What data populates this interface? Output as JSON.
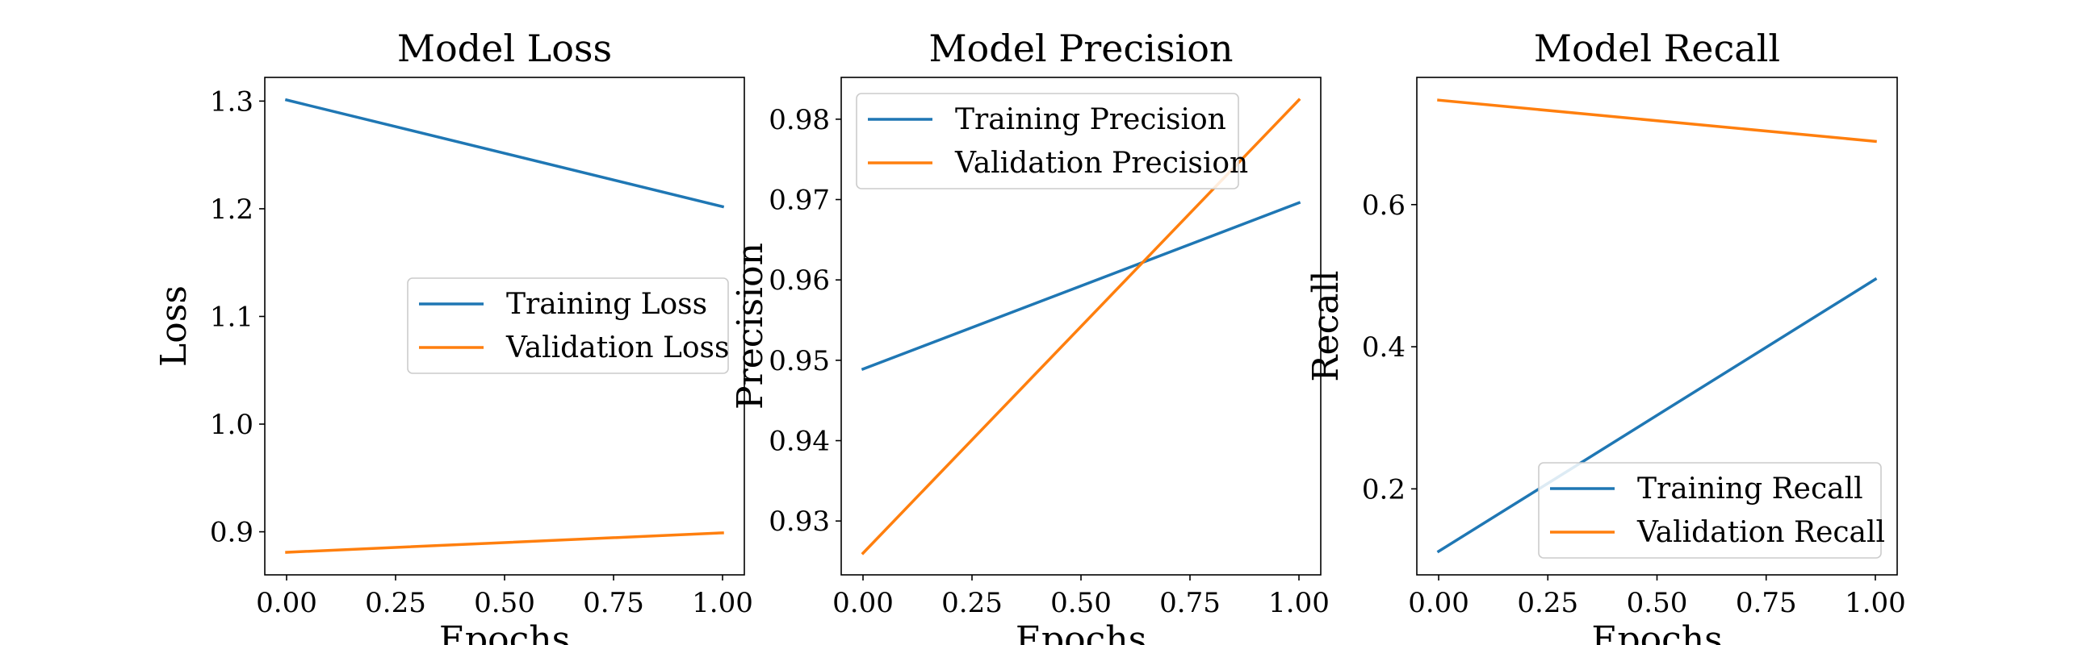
{
  "colors": {
    "training": "#1f77b4",
    "validation": "#ff7f0e",
    "axis": "#000000",
    "legend_border": "#cccccc"
  },
  "chart_data": [
    {
      "type": "line",
      "title": "Model Loss",
      "xlabel": "Epochs",
      "ylabel": "Loss",
      "xlim": [
        -0.05,
        1.05
      ],
      "ylim": [
        0.86,
        1.322
      ],
      "xticks": [
        0.0,
        0.25,
        0.5,
        0.75,
        1.0
      ],
      "xtick_labels": [
        "0.00",
        "0.25",
        "0.50",
        "0.75",
        "1.00"
      ],
      "yticks": [
        0.9,
        1.0,
        1.1,
        1.2,
        1.3
      ],
      "ytick_labels": [
        "0.9",
        "1.0",
        "1.1",
        "1.2",
        "1.3"
      ],
      "grid": false,
      "legend_position": "center-right",
      "series": [
        {
          "name": "Training Loss",
          "color_key": "training",
          "x": [
            0,
            1
          ],
          "y": [
            1.301,
            1.202
          ]
        },
        {
          "name": "Validation Loss",
          "color_key": "validation",
          "x": [
            0,
            1
          ],
          "y": [
            0.881,
            0.899
          ]
        }
      ]
    },
    {
      "type": "line",
      "title": "Model Precision",
      "xlabel": "Epochs",
      "ylabel": "Precision",
      "xlim": [
        -0.05,
        1.05
      ],
      "ylim": [
        0.9233,
        0.9852
      ],
      "xticks": [
        0.0,
        0.25,
        0.5,
        0.75,
        1.0
      ],
      "xtick_labels": [
        "0.00",
        "0.25",
        "0.50",
        "0.75",
        "1.00"
      ],
      "yticks": [
        0.93,
        0.94,
        0.95,
        0.96,
        0.97,
        0.98
      ],
      "ytick_labels": [
        "0.93",
        "0.94",
        "0.95",
        "0.96",
        "0.97",
        "0.98"
      ],
      "grid": false,
      "legend_position": "upper-left",
      "series": [
        {
          "name": "Training Precision",
          "color_key": "training",
          "x": [
            0,
            1
          ],
          "y": [
            0.9489,
            0.9696
          ]
        },
        {
          "name": "Validation Precision",
          "color_key": "validation",
          "x": [
            0,
            1
          ],
          "y": [
            0.926,
            0.9824
          ]
        }
      ]
    },
    {
      "type": "line",
      "title": "Model Recall",
      "xlabel": "Epochs",
      "ylabel": "Recall",
      "xlim": [
        -0.05,
        1.05
      ],
      "ylim": [
        0.079,
        0.779
      ],
      "xticks": [
        0.0,
        0.25,
        0.5,
        0.75,
        1.0
      ],
      "xtick_labels": [
        "0.00",
        "0.25",
        "0.50",
        "0.75",
        "1.00"
      ],
      "yticks": [
        0.2,
        0.4,
        0.6
      ],
      "ytick_labels": [
        "0.2",
        "0.4",
        "0.6"
      ],
      "grid": false,
      "legend_position": "lower-right",
      "series": [
        {
          "name": "Training Recall",
          "color_key": "training",
          "x": [
            0,
            1
          ],
          "y": [
            0.112,
            0.495
          ]
        },
        {
          "name": "Validation Recall",
          "color_key": "validation",
          "x": [
            0,
            1
          ],
          "y": [
            0.747,
            0.689
          ]
        }
      ]
    }
  ]
}
